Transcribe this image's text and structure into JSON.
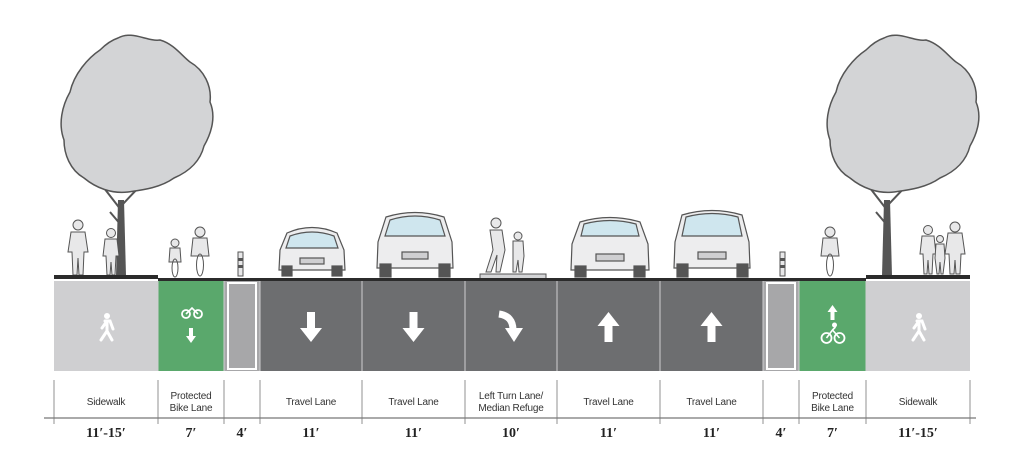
{
  "colors": {
    "sidewalk": "#cfcfd1",
    "bike_lane": "#5aa86c",
    "buffer": "#a7a7a9",
    "travel_lane": "#6d6e70",
    "lane_divider": "#cfcfd1",
    "curb": "#2b2b2b",
    "tree": "#d3d4d6",
    "outline": "#555555"
  },
  "segments": [
    {
      "id": "sidewalk-left",
      "kind": "sidewalk",
      "label": "Sidewalk",
      "width": "11′-15′",
      "icon": "pedestrian-icon"
    },
    {
      "id": "bike-lane-left",
      "kind": "bike",
      "label": "Protected\nBike Lane",
      "width": "7′",
      "icon": "bicycle-down-icon"
    },
    {
      "id": "buffer-left",
      "kind": "buffer",
      "label": "",
      "width": "4′",
      "icon": ""
    },
    {
      "id": "travel-lane-1",
      "kind": "travel",
      "label": "Travel Lane",
      "width": "11′",
      "icon": "arrow-down-icon"
    },
    {
      "id": "travel-lane-2",
      "kind": "travel",
      "label": "Travel Lane",
      "width": "11′",
      "icon": "arrow-down-icon"
    },
    {
      "id": "median",
      "kind": "median",
      "label": "Left Turn Lane/\nMedian Refuge",
      "width": "10′",
      "icon": "left-turn-arrow-icon"
    },
    {
      "id": "travel-lane-3",
      "kind": "travel",
      "label": "Travel Lane",
      "width": "11′",
      "icon": "arrow-up-icon"
    },
    {
      "id": "travel-lane-4",
      "kind": "travel",
      "label": "Travel Lane",
      "width": "11′",
      "icon": "arrow-up-icon"
    },
    {
      "id": "buffer-right",
      "kind": "buffer",
      "label": "",
      "width": "4′",
      "icon": ""
    },
    {
      "id": "bike-lane-right",
      "kind": "bike",
      "label": "Protected\nBike Lane",
      "width": "7′",
      "icon": "bicycle-up-icon"
    },
    {
      "id": "sidewalk-right",
      "kind": "sidewalk",
      "label": "Sidewalk",
      "width": "11′-15′",
      "icon": "pedestrian-icon"
    }
  ],
  "figures": {
    "left_trees": 1,
    "right_trees": 1,
    "cars_front": 2,
    "cars_rear": 2,
    "cyclists": 3,
    "bollards": 2,
    "pedestrians_left": 2,
    "pedestrians_median": 2,
    "pedestrians_right": 3
  }
}
